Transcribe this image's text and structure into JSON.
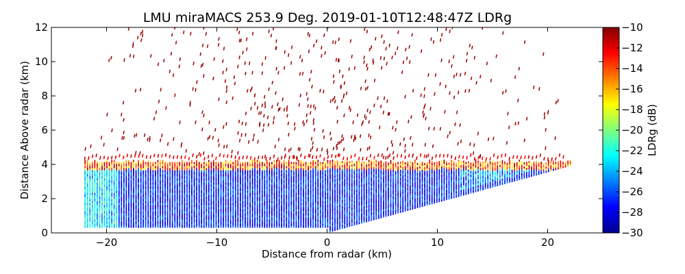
{
  "chart_data": {
    "type": "heatmap",
    "title": "LMU miraMACS 253.9 Deg. 2019-01-10T12:48:47Z  LDRg",
    "xlabel": "Distance from radar (km)",
    "ylabel": "Distance Above radar  (km)",
    "xlim": [
      -25,
      25
    ],
    "ylim": [
      0,
      12
    ],
    "x_ticks": [
      -20,
      -10,
      0,
      10,
      20
    ],
    "x_tick_labels": [
      "−20",
      "−10",
      "0",
      "10",
      "20"
    ],
    "y_ticks": [
      0,
      2,
      4,
      6,
      8,
      10,
      12
    ],
    "y_tick_labels": [
      "0",
      "2",
      "4",
      "6",
      "8",
      "10",
      "12"
    ],
    "colorbar": {
      "label": "LDRg (dB)",
      "range": [
        -30,
        -10
      ],
      "ticks": [
        -30,
        -28,
        -26,
        -24,
        -22,
        -20,
        -18,
        -16,
        -14,
        -12,
        -10
      ],
      "tick_labels": [
        "−30",
        "−28",
        "−26",
        "−24",
        "−22",
        "−20",
        "−18",
        "−16",
        "−14",
        "−12",
        "−10"
      ],
      "colormap": "jet"
    },
    "scan": {
      "left_edge_x_km": -22,
      "right_edge_x_km": 22,
      "right_edge_top_km": 3.9,
      "cloud_top_km": 4.3,
      "clutter_top_km": 12,
      "typical_ldr_db": -27,
      "cloud_top_ldr_db": -14,
      "clutter_ldr_db": -10.5
    }
  }
}
